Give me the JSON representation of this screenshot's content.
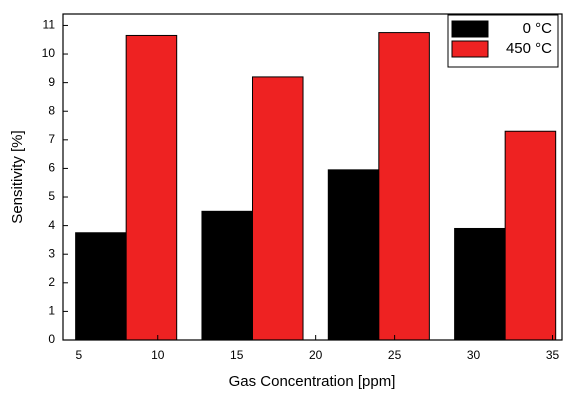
{
  "chart_data": {
    "type": "bar",
    "x_label": "Gas Concentration [ppm]",
    "y_label": "Sensitivity [%]",
    "x": [
      8,
      16,
      24,
      32
    ],
    "series": [
      {
        "name": "0 °C",
        "color": "#000000",
        "values": [
          3.75,
          4.5,
          5.95,
          3.9
        ]
      },
      {
        "name": "450 °C",
        "color": "#ee2222",
        "values": [
          10.65,
          9.2,
          10.75,
          7.3
        ]
      }
    ],
    "xlim": [
      4,
      35.6
    ],
    "xticks": [
      5,
      10,
      15,
      20,
      25,
      30,
      35
    ],
    "ylim": [
      0,
      11.4
    ],
    "yticks": [
      0,
      1,
      2,
      3,
      4,
      5,
      6,
      7,
      8,
      9,
      10,
      11
    ],
    "legend": "top-right"
  }
}
